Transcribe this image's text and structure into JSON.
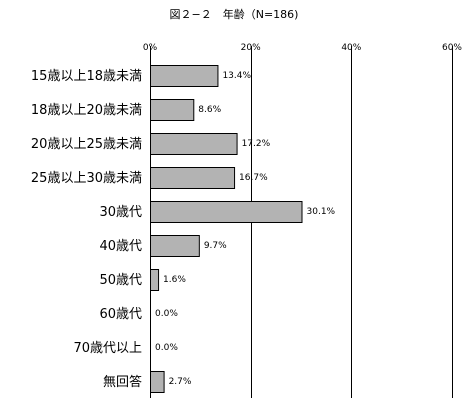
{
  "chart_data": {
    "type": "bar",
    "orientation": "horizontal",
    "title": "図２−２　年齢（N=186)",
    "categories": [
      "15歳以上18歳未満",
      "18歳以上20歳未満",
      "20歳以上25歳未満",
      "25歳以上30歳未満",
      "30歳代",
      "40歳代",
      "50歳代",
      "60歳代",
      "70歳代以上",
      "無回答"
    ],
    "values": [
      13.4,
      8.6,
      17.2,
      16.7,
      30.1,
      9.7,
      1.6,
      0.0,
      0.0,
      2.7
    ],
    "value_labels": [
      "13.4%",
      "8.6%",
      "17.2%",
      "16.7%",
      "30.1%",
      "9.7%",
      "1.6%",
      "0.0%",
      "0.0%",
      "2.7%"
    ],
    "x_ticks": [
      0,
      20,
      40,
      60
    ],
    "x_tick_labels": [
      "0%",
      "20%",
      "40%",
      "60%"
    ],
    "xlim": [
      0,
      60
    ],
    "xlabel": "",
    "ylabel": "",
    "grid": true,
    "legend": "none",
    "bar_color": "#b3b3b3",
    "bar_edge_color": "#000000"
  }
}
